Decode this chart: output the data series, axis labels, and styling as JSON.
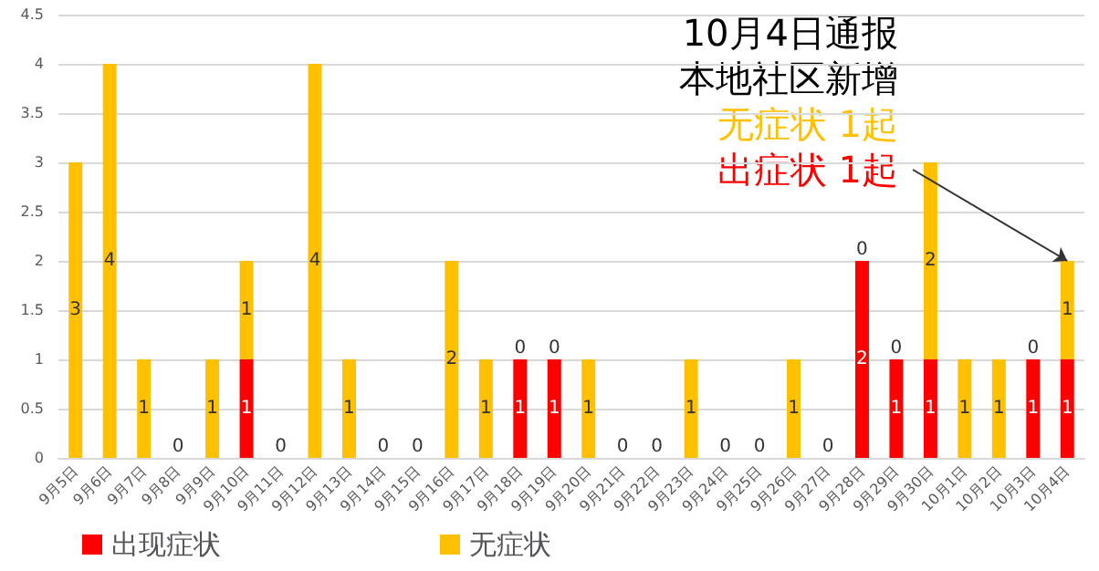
{
  "chart_data": {
    "type": "bar",
    "stacked": true,
    "grid": "y",
    "legend": "bottom left",
    "categories": [
      "9月5日",
      "9月6日",
      "9月7日",
      "9月8日",
      "9月9日",
      "9月10日",
      "9月11日",
      "9月12日",
      "9月13日",
      "9月14日",
      "9月15日",
      "9月16日",
      "9月17日",
      "9月18日",
      "9月19日",
      "9月20日",
      "9月21日",
      "9月22日",
      "9月23日",
      "9月24日",
      "9月25日",
      "9月26日",
      "9月27日",
      "9月28日",
      "9月29日",
      "9月30日",
      "10月1日",
      "10月2日",
      "10月3日",
      "10月4日"
    ],
    "series": [
      {
        "name": "出现症状",
        "color": "#ff0000",
        "values": [
          0,
          0,
          0,
          0,
          0,
          1,
          0,
          0,
          0,
          0,
          0,
          0,
          0,
          1,
          1,
          0,
          0,
          0,
          0,
          0,
          0,
          0,
          0,
          2,
          1,
          1,
          0,
          0,
          1,
          1
        ],
        "value_labels": [
          null,
          null,
          null,
          null,
          null,
          "1",
          null,
          null,
          null,
          null,
          null,
          null,
          null,
          "1",
          "1",
          null,
          null,
          null,
          null,
          null,
          null,
          null,
          null,
          "2",
          "1",
          "1",
          null,
          null,
          "1",
          "1"
        ]
      },
      {
        "name": "无症状",
        "color": "#ffc000",
        "values": [
          3,
          4,
          1,
          0,
          1,
          1,
          0,
          4,
          1,
          0,
          0,
          2,
          1,
          0,
          0,
          1,
          0,
          0,
          1,
          0,
          0,
          1,
          0,
          0,
          0,
          2,
          1,
          1,
          0,
          1
        ],
        "value_labels": [
          "3",
          "4",
          "1",
          "0",
          "1",
          "1",
          "0",
          "4",
          "1",
          "0",
          "0",
          "2",
          "1",
          "0",
          "0",
          "1",
          "0",
          "0",
          "1",
          "0",
          "0",
          "1",
          "0",
          "0",
          "0",
          "2",
          "1",
          "1",
          "0",
          "1"
        ]
      }
    ],
    "ylim": [
      0,
      4.5
    ],
    "yticks": [
      0,
      0.5,
      1,
      1.5,
      2,
      2.5,
      3,
      3.5,
      4,
      4.5
    ],
    "annotations": [
      "10月4日通报",
      "本地社区新增",
      "无症状 1起",
      {
        "text": "出症状 1起",
        "x": "10月4日",
        "y": 2
      }
    ]
  }
}
